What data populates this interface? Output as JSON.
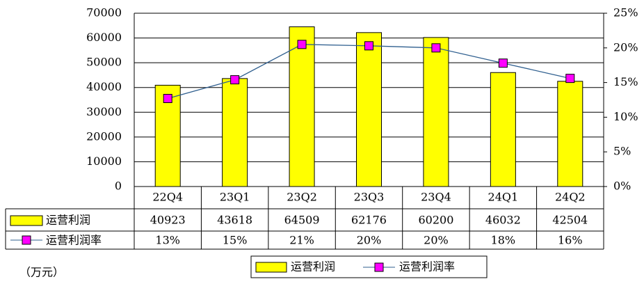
{
  "chart_data": {
    "type": "bar",
    "unit_note": "（万元）",
    "categories": [
      "22Q4",
      "23Q1",
      "23Q2",
      "23Q3",
      "23Q4",
      "24Q1",
      "24Q2"
    ],
    "series": [
      {
        "name": "运营利润",
        "type": "bar",
        "color": "#ffff00",
        "values": [
          40923,
          43618,
          64509,
          62176,
          60200,
          46032,
          42504
        ]
      },
      {
        "name": "运营利润率",
        "type": "line",
        "axis": "y2",
        "color": "#ff00ff",
        "line_color": "#2f5f8f",
        "values": [
          12.7,
          15.4,
          20.5,
          20.3,
          20.0,
          17.8,
          15.6
        ],
        "value_labels": [
          "13%",
          "15%",
          "21%",
          "20%",
          "20%",
          "18%",
          "16%"
        ]
      }
    ],
    "ylim": [
      0,
      70000
    ],
    "yticks": [
      0,
      10000,
      20000,
      30000,
      40000,
      50000,
      60000,
      70000
    ],
    "y2lim": [
      0,
      25
    ],
    "y2ticks": [
      {
        "value": 0,
        "label": "0%"
      },
      {
        "value": 5,
        "label": "5%"
      },
      {
        "value": 10,
        "label": "10%"
      },
      {
        "value": 15,
        "label": "15%"
      },
      {
        "value": 20,
        "label": "20%"
      },
      {
        "value": 25,
        "label": "25%"
      }
    ],
    "grid": true
  }
}
